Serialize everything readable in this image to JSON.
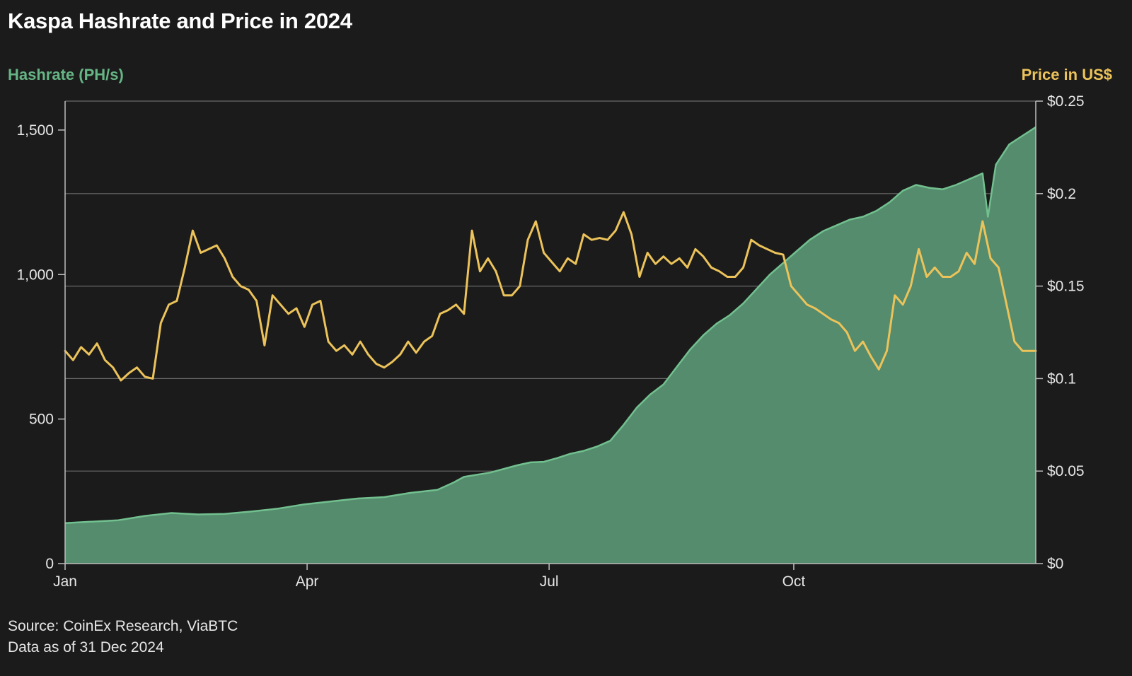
{
  "chart_data": {
    "type": "area+line",
    "title": "Kaspa Hashrate and Price in 2024",
    "y_left_label": "Hashrate (PH/s)",
    "y_right_label": "Price in US$",
    "y_left_ticks": [
      {
        "value": 0,
        "label": "0"
      },
      {
        "value": 500,
        "label": "500"
      },
      {
        "value": 1000,
        "label": "1,000"
      },
      {
        "value": 1500,
        "label": "1,500"
      }
    ],
    "y_right_ticks": [
      {
        "value": 0,
        "label": "$0"
      },
      {
        "value": 0.05,
        "label": "$0.05"
      },
      {
        "value": 0.1,
        "label": "$0.1"
      },
      {
        "value": 0.15,
        "label": "$0.15"
      },
      {
        "value": 0.2,
        "label": "$0.2"
      },
      {
        "value": 0.25,
        "label": "$0.25"
      }
    ],
    "x_ticks": [
      {
        "value": 0,
        "label": "Jan"
      },
      {
        "value": 91,
        "label": "Apr"
      },
      {
        "value": 182,
        "label": "Jul"
      },
      {
        "value": 274,
        "label": "Oct"
      }
    ],
    "x_range": [
      0,
      365
    ],
    "y_left_range": [
      0,
      1600
    ],
    "y_right_range": [
      0,
      0.25
    ],
    "grid": "horizontal",
    "colors": {
      "hashrate_fill": "#548c6d",
      "hashrate_line": "#72c08f",
      "hashrate_label": "#66b585",
      "price_line": "#ecc35a",
      "price_label": "#ecc35a",
      "grid": "#6a6a6a",
      "axis": "#bdbdbd"
    },
    "series": [
      {
        "role": "hashrate",
        "axis": "left",
        "points": [
          [
            0,
            140
          ],
          [
            10,
            145
          ],
          [
            20,
            150
          ],
          [
            30,
            165
          ],
          [
            40,
            175
          ],
          [
            50,
            170
          ],
          [
            60,
            172
          ],
          [
            70,
            180
          ],
          [
            80,
            190
          ],
          [
            90,
            205
          ],
          [
            100,
            215
          ],
          [
            110,
            225
          ],
          [
            120,
            230
          ],
          [
            130,
            245
          ],
          [
            140,
            255
          ],
          [
            146,
            280
          ],
          [
            150,
            300
          ],
          [
            160,
            315
          ],
          [
            170,
            340
          ],
          [
            175,
            350
          ],
          [
            180,
            352
          ],
          [
            185,
            365
          ],
          [
            190,
            380
          ],
          [
            195,
            390
          ],
          [
            200,
            405
          ],
          [
            205,
            425
          ],
          [
            210,
            480
          ],
          [
            215,
            540
          ],
          [
            220,
            585
          ],
          [
            225,
            620
          ],
          [
            230,
            680
          ],
          [
            235,
            740
          ],
          [
            240,
            790
          ],
          [
            245,
            830
          ],
          [
            250,
            860
          ],
          [
            255,
            900
          ],
          [
            260,
            950
          ],
          [
            265,
            1000
          ],
          [
            270,
            1040
          ],
          [
            275,
            1080
          ],
          [
            280,
            1120
          ],
          [
            285,
            1150
          ],
          [
            290,
            1170
          ],
          [
            295,
            1190
          ],
          [
            300,
            1200
          ],
          [
            305,
            1220
          ],
          [
            310,
            1250
          ],
          [
            315,
            1290
          ],
          [
            320,
            1310
          ],
          [
            325,
            1300
          ],
          [
            330,
            1295
          ],
          [
            335,
            1310
          ],
          [
            340,
            1330
          ],
          [
            345,
            1350
          ],
          [
            347,
            1200
          ],
          [
            350,
            1380
          ],
          [
            355,
            1450
          ],
          [
            360,
            1480
          ],
          [
            365,
            1510
          ]
        ]
      },
      {
        "role": "price",
        "axis": "right",
        "points": [
          [
            0,
            0.115
          ],
          [
            3,
            0.11
          ],
          [
            6,
            0.117
          ],
          [
            9,
            0.113
          ],
          [
            12,
            0.119
          ],
          [
            15,
            0.11
          ],
          [
            18,
            0.106
          ],
          [
            21,
            0.099
          ],
          [
            24,
            0.103
          ],
          [
            27,
            0.106
          ],
          [
            30,
            0.101
          ],
          [
            33,
            0.1
          ],
          [
            36,
            0.13
          ],
          [
            39,
            0.14
          ],
          [
            42,
            0.142
          ],
          [
            45,
            0.16
          ],
          [
            48,
            0.18
          ],
          [
            51,
            0.168
          ],
          [
            54,
            0.17
          ],
          [
            57,
            0.172
          ],
          [
            60,
            0.165
          ],
          [
            63,
            0.155
          ],
          [
            66,
            0.15
          ],
          [
            69,
            0.148
          ],
          [
            72,
            0.142
          ],
          [
            75,
            0.118
          ],
          [
            78,
            0.145
          ],
          [
            81,
            0.14
          ],
          [
            84,
            0.135
          ],
          [
            87,
            0.138
          ],
          [
            90,
            0.128
          ],
          [
            93,
            0.14
          ],
          [
            96,
            0.142
          ],
          [
            99,
            0.12
          ],
          [
            102,
            0.115
          ],
          [
            105,
            0.118
          ],
          [
            108,
            0.113
          ],
          [
            111,
            0.12
          ],
          [
            114,
            0.113
          ],
          [
            117,
            0.108
          ],
          [
            120,
            0.106
          ],
          [
            123,
            0.109
          ],
          [
            126,
            0.113
          ],
          [
            129,
            0.12
          ],
          [
            132,
            0.114
          ],
          [
            135,
            0.12
          ],
          [
            138,
            0.123
          ],
          [
            141,
            0.135
          ],
          [
            144,
            0.137
          ],
          [
            147,
            0.14
          ],
          [
            150,
            0.135
          ],
          [
            153,
            0.18
          ],
          [
            156,
            0.158
          ],
          [
            159,
            0.165
          ],
          [
            162,
            0.158
          ],
          [
            165,
            0.145
          ],
          [
            168,
            0.145
          ],
          [
            171,
            0.15
          ],
          [
            174,
            0.175
          ],
          [
            177,
            0.185
          ],
          [
            180,
            0.168
          ],
          [
            183,
            0.163
          ],
          [
            186,
            0.158
          ],
          [
            189,
            0.165
          ],
          [
            192,
            0.162
          ],
          [
            195,
            0.178
          ],
          [
            198,
            0.175
          ],
          [
            201,
            0.176
          ],
          [
            204,
            0.175
          ],
          [
            207,
            0.18
          ],
          [
            210,
            0.19
          ],
          [
            213,
            0.178
          ],
          [
            216,
            0.155
          ],
          [
            219,
            0.168
          ],
          [
            222,
            0.162
          ],
          [
            225,
            0.166
          ],
          [
            228,
            0.162
          ],
          [
            231,
            0.165
          ],
          [
            234,
            0.16
          ],
          [
            237,
            0.17
          ],
          [
            240,
            0.166
          ],
          [
            243,
            0.16
          ],
          [
            246,
            0.158
          ],
          [
            249,
            0.155
          ],
          [
            252,
            0.155
          ],
          [
            255,
            0.16
          ],
          [
            258,
            0.175
          ],
          [
            261,
            0.172
          ],
          [
            264,
            0.17
          ],
          [
            267,
            0.168
          ],
          [
            270,
            0.167
          ],
          [
            273,
            0.15
          ],
          [
            276,
            0.145
          ],
          [
            279,
            0.14
          ],
          [
            282,
            0.138
          ],
          [
            285,
            0.135
          ],
          [
            288,
            0.132
          ],
          [
            291,
            0.13
          ],
          [
            294,
            0.125
          ],
          [
            297,
            0.115
          ],
          [
            300,
            0.12
          ],
          [
            303,
            0.112
          ],
          [
            306,
            0.105
          ],
          [
            309,
            0.115
          ],
          [
            312,
            0.145
          ],
          [
            315,
            0.14
          ],
          [
            318,
            0.15
          ],
          [
            321,
            0.17
          ],
          [
            324,
            0.155
          ],
          [
            327,
            0.16
          ],
          [
            330,
            0.155
          ],
          [
            333,
            0.155
          ],
          [
            336,
            0.158
          ],
          [
            339,
            0.168
          ],
          [
            342,
            0.162
          ],
          [
            345,
            0.185
          ],
          [
            348,
            0.165
          ],
          [
            351,
            0.16
          ],
          [
            354,
            0.14
          ],
          [
            357,
            0.12
          ],
          [
            360,
            0.115
          ],
          [
            365,
            0.115
          ]
        ]
      }
    ]
  },
  "footer": {
    "source": "Source: CoinEx Research, ViaBTC",
    "data_as_of": "Data as of 31 Dec 2024"
  }
}
